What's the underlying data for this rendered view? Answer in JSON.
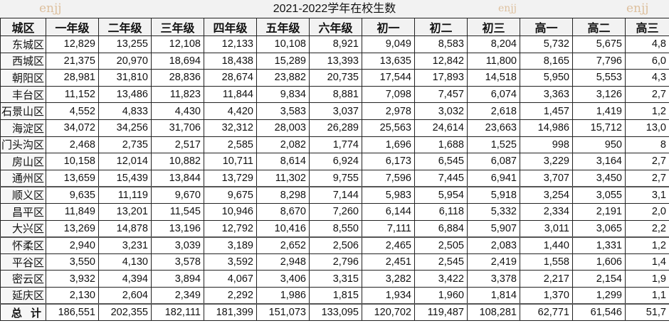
{
  "title": "2021-2022学年在校生数",
  "watermark": "enjj",
  "columns": [
    "城区",
    "一年级",
    "二年级",
    "三年级",
    "四年级",
    "五年级",
    "六年级",
    "初一",
    "初二",
    "初三",
    "高一",
    "高二",
    "高三"
  ],
  "rows": [
    {
      "name": "东城区",
      "values": [
        "12,829",
        "13,255",
        "12,108",
        "12,133",
        "10,108",
        "8,921",
        "9,049",
        "8,583",
        "8,204",
        "5,732",
        "5,675",
        "4,8"
      ]
    },
    {
      "name": "西城区",
      "values": [
        "21,375",
        "20,970",
        "18,694",
        "18,438",
        "15,289",
        "13,393",
        "13,635",
        "12,842",
        "11,800",
        "8,165",
        "7,796",
        "6,0"
      ]
    },
    {
      "name": "朝阳区",
      "values": [
        "28,981",
        "31,810",
        "28,836",
        "28,674",
        "23,882",
        "20,735",
        "17,544",
        "17,893",
        "14,518",
        "5,950",
        "5,553",
        "4,3"
      ]
    },
    {
      "name": "丰台区",
      "values": [
        "11,152",
        "13,486",
        "11,823",
        "11,844",
        "9,834",
        "8,881",
        "7,098",
        "7,457",
        "6,074",
        "3,363",
        "3,126",
        "2,7"
      ]
    },
    {
      "name": "石景山区",
      "values": [
        "4,552",
        "4,833",
        "4,430",
        "4,420",
        "3,583",
        "3,037",
        "2,978",
        "3,032",
        "2,618",
        "1,457",
        "1,419",
        "1,2"
      ]
    },
    {
      "name": "海淀区",
      "values": [
        "34,072",
        "34,256",
        "31,706",
        "32,312",
        "28,003",
        "26,289",
        "25,563",
        "24,614",
        "23,663",
        "14,986",
        "15,712",
        "13,0"
      ]
    },
    {
      "name": "门头沟区",
      "values": [
        "2,468",
        "2,735",
        "2,517",
        "2,585",
        "2,082",
        "1,774",
        "1,696",
        "1,688",
        "1,525",
        "998",
        "950",
        "8"
      ]
    },
    {
      "name": "房山区",
      "values": [
        "10,158",
        "12,014",
        "10,882",
        "10,711",
        "8,614",
        "6,924",
        "6,173",
        "6,545",
        "6,087",
        "3,229",
        "3,164",
        "2,7"
      ]
    },
    {
      "name": "通州区",
      "values": [
        "13,659",
        "15,439",
        "13,844",
        "13,729",
        "11,302",
        "9,755",
        "7,596",
        "7,445",
        "6,941",
        "3,707",
        "3,450",
        "2,7"
      ]
    },
    {
      "name": "顺义区",
      "values": [
        "9,635",
        "11,119",
        "9,670",
        "9,675",
        "8,298",
        "7,144",
        "5,983",
        "5,954",
        "5,918",
        "3,254",
        "3,055",
        "3,1"
      ]
    },
    {
      "name": "昌平区",
      "values": [
        "11,849",
        "13,201",
        "11,545",
        "10,946",
        "8,670",
        "7,260",
        "6,144",
        "6,118",
        "5,332",
        "2,334",
        "2,191",
        "2,0"
      ]
    },
    {
      "name": "大兴区",
      "values": [
        "13,269",
        "14,878",
        "13,196",
        "12,792",
        "10,416",
        "8,550",
        "7,111",
        "6,884",
        "5,907",
        "3,011",
        "3,065",
        "2,2"
      ]
    },
    {
      "name": "怀柔区",
      "values": [
        "2,940",
        "3,231",
        "3,039",
        "3,189",
        "2,652",
        "2,506",
        "2,465",
        "2,505",
        "2,083",
        "1,440",
        "1,331",
        "1,2"
      ]
    },
    {
      "name": "平谷区",
      "values": [
        "3,550",
        "4,130",
        "3,578",
        "3,592",
        "2,948",
        "2,796",
        "2,451",
        "2,545",
        "2,419",
        "1,558",
        "1,606",
        "1,4"
      ]
    },
    {
      "name": "密云区",
      "values": [
        "3,932",
        "4,394",
        "3,894",
        "4,067",
        "3,406",
        "3,315",
        "3,282",
        "3,422",
        "3,378",
        "2,217",
        "2,154",
        "1,9"
      ]
    },
    {
      "name": "延庆区",
      "values": [
        "2,130",
        "2,604",
        "2,349",
        "2,292",
        "1,986",
        "1,815",
        "1,934",
        "1,960",
        "1,814",
        "1,370",
        "1,299",
        "1,1"
      ]
    },
    {
      "name": "总 计",
      "values": [
        "186,551",
        "202,355",
        "182,111",
        "181,399",
        "151,073",
        "133,095",
        "120,702",
        "119,487",
        "108,281",
        "62,771",
        "61,546",
        "51,7"
      ]
    }
  ]
}
